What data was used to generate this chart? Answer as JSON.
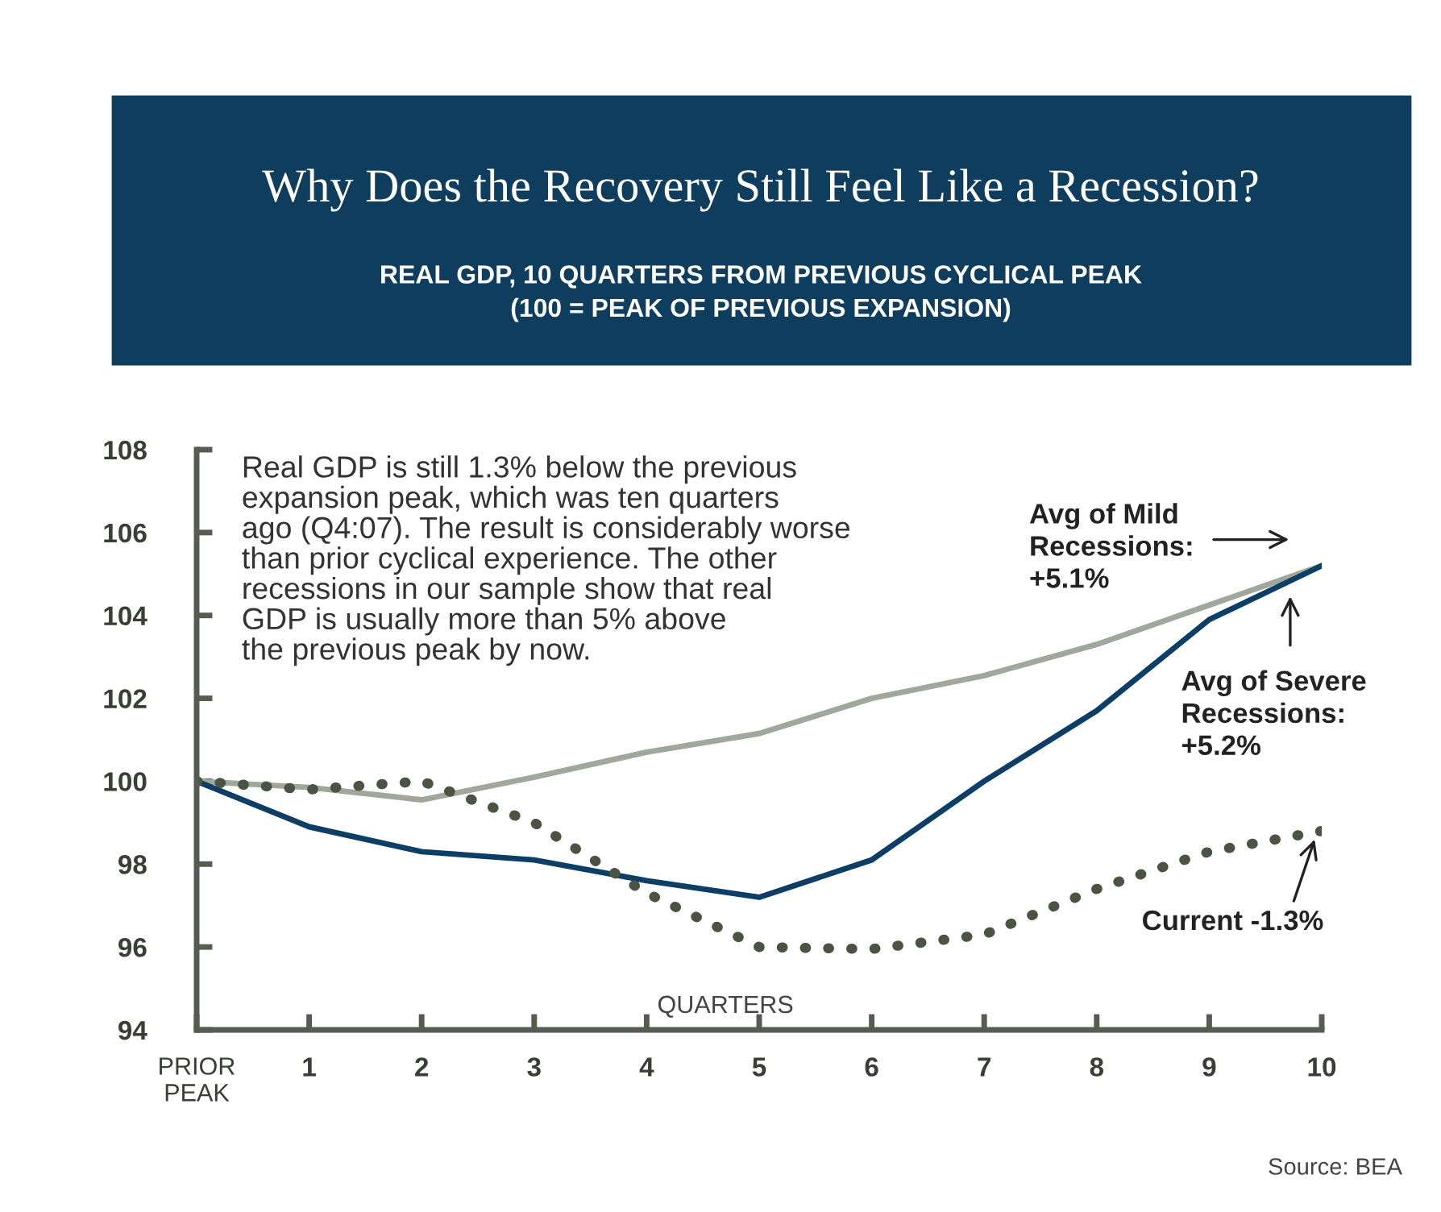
{
  "chart_data": {
    "type": "line",
    "title": "Why Does the Recovery Still Feel Like a Recession?",
    "subtitle": "REAL GDP, 10 QUARTERS FROM PREVIOUS CYCLICAL PEAK\n(100 = PEAK OF PREVIOUS EXPANSION)",
    "xlabel": "QUARTERS",
    "x": [
      0,
      1,
      2,
      3,
      4,
      5,
      6,
      7,
      8,
      9,
      10
    ],
    "series": [
      {
        "color": "#a0a79b",
        "line_style": "solid",
        "values": [
          100,
          99.85,
          99.55,
          100.1,
          100.7,
          101.15,
          102,
          102.55,
          103.3,
          104.25,
          105.2
        ]
      },
      {
        "color": "#0d3f66",
        "line_style": "solid",
        "values": [
          100,
          98.9,
          98.3,
          98.1,
          97.6,
          97.2,
          98.1,
          100,
          101.7,
          103.9,
          105.2
        ]
      },
      {
        "color": "#4b5443",
        "line_style": "dotted",
        "values": [
          100,
          99.8,
          100,
          99,
          97.3,
          96,
          95.95,
          96.3,
          97.4,
          98.3,
          98.8
        ]
      }
    ],
    "xlim": [
      0,
      10
    ],
    "xticks": [
      {
        "value": 0,
        "label": "PRIOR\nPEAK"
      },
      1,
      2,
      3,
      4,
      5,
      6,
      7,
      8,
      9,
      10
    ],
    "ylim": [
      94,
      108
    ],
    "yticks": [
      94,
      96,
      98,
      100,
      102,
      104,
      106,
      108
    ],
    "grid": false,
    "legend": false,
    "annotations": [
      "Real GDP is still 1.3% below the previous\nexpansion peak, which was ten quarters\nago (Q4:07). The result is considerably worse\nthan prior cyclical experience. The other\nrecessions in our sample show that real\nGDP is usually more than 5% above\nthe previous peak by now.",
      "Avg of Mild\nRecessions:\n+5.1%",
      "Avg of Severe\nRecessions:\n+5.2%",
      {
        "text": "Current -1.3%",
        "x": 10,
        "y": 98.8
      },
      "Source: BEA"
    ]
  }
}
